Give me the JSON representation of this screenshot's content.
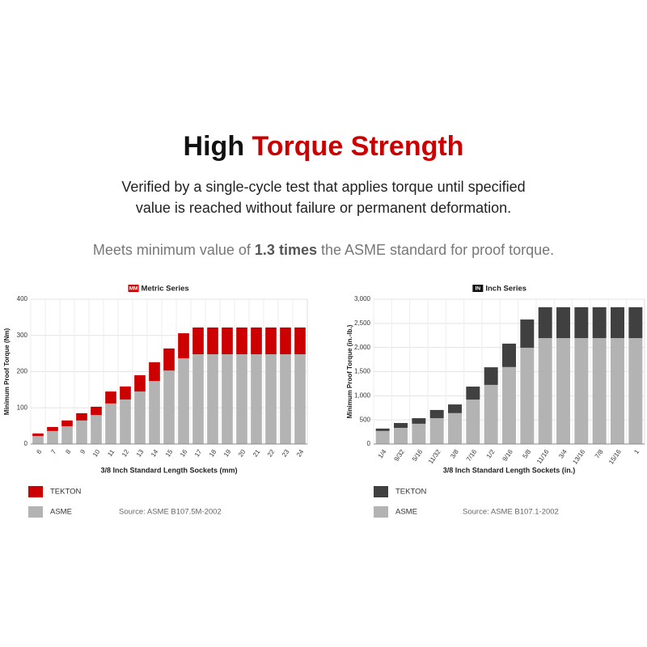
{
  "header": {
    "title_part1": "High",
    "title_part2": "Torque Strength",
    "subtitle": [
      "Verified by a single-cycle test that applies torque until specified",
      "value is reached without failure or permanent deformation."
    ],
    "note": [
      "Meets minimum value of",
      "1.3 times",
      "the ASME standard for proof torque."
    ]
  },
  "chart_data": [
    {
      "type": "bar",
      "stacked": true,
      "badge": "MM",
      "badge_color": "#cc0000",
      "title": "Metric Series",
      "categories": [
        "6",
        "7",
        "8",
        "9",
        "10",
        "11",
        "12",
        "13",
        "14",
        "15",
        "16",
        "17",
        "18",
        "19",
        "20",
        "21",
        "22",
        "23",
        "24"
      ],
      "series": [
        {
          "name": "ASME",
          "color": "#b3b3b3",
          "values": [
            22,
            36,
            49,
            65,
            80,
            112,
            123,
            145,
            174,
            203,
            237,
            248,
            248,
            248,
            248,
            248,
            248,
            248,
            248
          ]
        },
        {
          "name": "TEKTON",
          "color": "#cc0000",
          "values": [
            7,
            11,
            16,
            20,
            23,
            33,
            36,
            45,
            52,
            61,
            69,
            74,
            74,
            74,
            74,
            74,
            74,
            74,
            74
          ]
        }
      ],
      "ylim": [
        0,
        400
      ],
      "yticks": [
        0,
        100,
        200,
        300,
        400
      ],
      "grid": true,
      "xlabel": "3/8 Inch Standard Length Sockets (mm)",
      "ylabel": "Minimum Proof Torque (Nm)",
      "source": "Source: ASME B107.5M-2002"
    },
    {
      "type": "bar",
      "stacked": true,
      "badge": "IN",
      "badge_color": "#111111",
      "title": "Inch Series",
      "categories": [
        "1/4",
        "9/32",
        "5/16",
        "11/32",
        "3/8",
        "7/16",
        "1/2",
        "9/16",
        "5/8",
        "11/16",
        "3/4",
        "13/16",
        "7/8",
        "15/16",
        "1"
      ],
      "series": [
        {
          "name": "ASME",
          "color": "#b3b3b3",
          "values": [
            270,
            335,
            420,
            535,
            640,
            920,
            1225,
            1595,
            1995,
            2195,
            2195,
            2195,
            2195,
            2195,
            2195
          ]
        },
        {
          "name": "TEKTON",
          "color": "#404040",
          "values": [
            50,
            100,
            115,
            170,
            180,
            270,
            365,
            485,
            585,
            640,
            640,
            640,
            640,
            640,
            640
          ]
        }
      ],
      "ylim": [
        0,
        3000
      ],
      "yticks": [
        0,
        500,
        {
          "value": 1000,
          "label": "1,000"
        },
        {
          "value": 1500,
          "label": "1,500"
        },
        {
          "value": 2000,
          "label": "2,000"
        },
        {
          "value": 2500,
          "label": "2,500"
        },
        {
          "value": 3000,
          "label": "3,000"
        }
      ],
      "grid": true,
      "xlabel": "3/8 Inch Standard Length Sockets (in.)",
      "ylabel": "Minimum Proof Torque (in.-lb.)",
      "source": "Source: ASME B107.1-2002"
    }
  ]
}
